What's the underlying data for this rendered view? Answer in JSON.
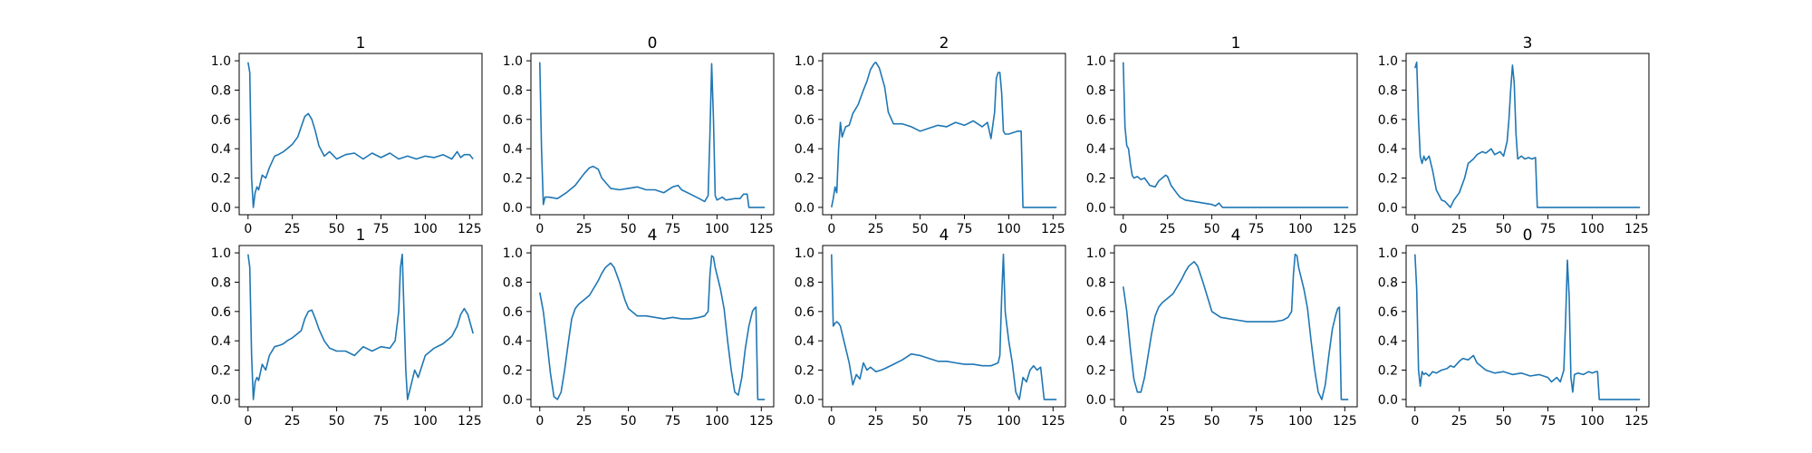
{
  "figure": {
    "line_color": "#1f77b4",
    "x_ticks": [
      0,
      25,
      50,
      75,
      100,
      125
    ],
    "y_ticks": [
      0.0,
      0.2,
      0.4,
      0.6,
      0.8,
      1.0
    ]
  },
  "chart_data": [
    {
      "type": "line",
      "title": "1",
      "xlabel": "",
      "ylabel": "",
      "xlim": [
        -5,
        132
      ],
      "ylim": [
        -0.05,
        1.05
      ],
      "grid": false,
      "series": [
        {
          "x": [
            0,
            1,
            2,
            3,
            4,
            5,
            6,
            8,
            10,
            12,
            15,
            17,
            20,
            22,
            25,
            28,
            30,
            32,
            34,
            36,
            38,
            40,
            43,
            46,
            50,
            55,
            60,
            65,
            70,
            75,
            80,
            85,
            90,
            95,
            100,
            105,
            110,
            115,
            118,
            120,
            122,
            125,
            127
          ],
          "y": [
            0.99,
            0.92,
            0.2,
            0.0,
            0.1,
            0.14,
            0.12,
            0.22,
            0.2,
            0.27,
            0.35,
            0.36,
            0.38,
            0.4,
            0.43,
            0.48,
            0.55,
            0.62,
            0.64,
            0.6,
            0.52,
            0.42,
            0.35,
            0.38,
            0.33,
            0.36,
            0.37,
            0.33,
            0.37,
            0.34,
            0.37,
            0.33,
            0.35,
            0.33,
            0.35,
            0.34,
            0.36,
            0.33,
            0.38,
            0.34,
            0.36,
            0.36,
            0.33
          ]
        }
      ]
    },
    {
      "type": "line",
      "title": "0",
      "xlabel": "",
      "ylabel": "",
      "xlim": [
        -5,
        132
      ],
      "ylim": [
        -0.05,
        1.05
      ],
      "grid": false,
      "series": [
        {
          "x": [
            0,
            1,
            2,
            3,
            5,
            10,
            15,
            20,
            25,
            28,
            30,
            33,
            35,
            40,
            45,
            50,
            55,
            60,
            65,
            70,
            75,
            78,
            80,
            85,
            90,
            93,
            95,
            96,
            97,
            98,
            99,
            100,
            103,
            105,
            110,
            113,
            115,
            117,
            118,
            120,
            125,
            127
          ],
          "y": [
            0.99,
            0.4,
            0.02,
            0.07,
            0.07,
            0.06,
            0.1,
            0.15,
            0.23,
            0.27,
            0.28,
            0.26,
            0.2,
            0.13,
            0.12,
            0.13,
            0.14,
            0.12,
            0.12,
            0.1,
            0.14,
            0.15,
            0.12,
            0.09,
            0.06,
            0.04,
            0.08,
            0.5,
            0.98,
            0.6,
            0.08,
            0.05,
            0.07,
            0.05,
            0.06,
            0.06,
            0.09,
            0.09,
            0.0,
            0.0,
            0.0,
            0.0
          ]
        }
      ]
    },
    {
      "type": "line",
      "title": "2",
      "xlabel": "",
      "ylabel": "",
      "xlim": [
        -5,
        132
      ],
      "ylim": [
        -0.05,
        1.05
      ],
      "grid": false,
      "series": [
        {
          "x": [
            0,
            1,
            2,
            3,
            4,
            5,
            6,
            8,
            10,
            12,
            15,
            18,
            20,
            22,
            24,
            25,
            27,
            30,
            32,
            35,
            40,
            45,
            50,
            55,
            60,
            65,
            70,
            75,
            80,
            85,
            88,
            90,
            92,
            93,
            94,
            95,
            96,
            97,
            98,
            100,
            105,
            107,
            108,
            110,
            115,
            120,
            125,
            127
          ],
          "y": [
            0.0,
            0.06,
            0.14,
            0.1,
            0.4,
            0.58,
            0.48,
            0.55,
            0.56,
            0.64,
            0.7,
            0.8,
            0.86,
            0.94,
            0.98,
            0.99,
            0.95,
            0.82,
            0.65,
            0.57,
            0.57,
            0.55,
            0.52,
            0.54,
            0.56,
            0.55,
            0.58,
            0.56,
            0.59,
            0.55,
            0.58,
            0.47,
            0.65,
            0.88,
            0.92,
            0.92,
            0.78,
            0.52,
            0.5,
            0.5,
            0.52,
            0.52,
            0.0,
            0.0,
            0.0,
            0.0,
            0.0,
            0.0
          ]
        }
      ]
    },
    {
      "type": "line",
      "title": "1",
      "xlabel": "",
      "ylabel": "",
      "xlim": [
        -5,
        132
      ],
      "ylim": [
        -0.05,
        1.05
      ],
      "grid": false,
      "series": [
        {
          "x": [
            0,
            1,
            2,
            3,
            4,
            5,
            6,
            8,
            10,
            12,
            15,
            18,
            20,
            22,
            24,
            25,
            27,
            30,
            32,
            35,
            40,
            45,
            50,
            52,
            54,
            56,
            60,
            70,
            80,
            90,
            100,
            110,
            120,
            127
          ],
          "y": [
            0.99,
            0.55,
            0.42,
            0.4,
            0.3,
            0.22,
            0.2,
            0.21,
            0.19,
            0.2,
            0.15,
            0.14,
            0.18,
            0.2,
            0.22,
            0.21,
            0.15,
            0.1,
            0.07,
            0.05,
            0.04,
            0.03,
            0.02,
            0.01,
            0.03,
            0.0,
            0.0,
            0.0,
            0.0,
            0.0,
            0.0,
            0.0,
            0.0,
            0.0
          ]
        }
      ]
    },
    {
      "type": "line",
      "title": "3",
      "xlabel": "",
      "ylabel": "",
      "xlim": [
        -5,
        132
      ],
      "ylim": [
        -0.05,
        1.05
      ],
      "grid": false,
      "series": [
        {
          "x": [
            0,
            1,
            2,
            3,
            4,
            5,
            6,
            8,
            10,
            12,
            15,
            17,
            20,
            22,
            25,
            28,
            30,
            33,
            35,
            38,
            40,
            43,
            45,
            48,
            50,
            52,
            53,
            54,
            55,
            56,
            57,
            58,
            60,
            62,
            64,
            66,
            68,
            69,
            70,
            80,
            90,
            100,
            110,
            120,
            127
          ],
          "y": [
            0.95,
            0.99,
            0.6,
            0.35,
            0.3,
            0.35,
            0.32,
            0.35,
            0.25,
            0.12,
            0.05,
            0.04,
            0.0,
            0.05,
            0.1,
            0.2,
            0.3,
            0.33,
            0.36,
            0.38,
            0.37,
            0.4,
            0.36,
            0.38,
            0.35,
            0.45,
            0.6,
            0.8,
            0.97,
            0.85,
            0.5,
            0.33,
            0.35,
            0.33,
            0.34,
            0.33,
            0.34,
            0.0,
            0.0,
            0.0,
            0.0,
            0.0,
            0.0,
            0.0,
            0.0
          ]
        }
      ]
    },
    {
      "type": "line",
      "title": "1",
      "xlabel": "",
      "ylabel": "",
      "xlim": [
        -5,
        132
      ],
      "ylim": [
        -0.05,
        1.05
      ],
      "grid": false,
      "series": [
        {
          "x": [
            0,
            1,
            2,
            3,
            4,
            5,
            6,
            8,
            10,
            12,
            15,
            18,
            20,
            22,
            25,
            28,
            30,
            32,
            34,
            36,
            38,
            40,
            43,
            46,
            50,
            55,
            60,
            65,
            70,
            75,
            80,
            83,
            85,
            86,
            87,
            88,
            89,
            90,
            92,
            94,
            96,
            100,
            105,
            110,
            115,
            118,
            120,
            122,
            124,
            127
          ],
          "y": [
            0.99,
            0.9,
            0.3,
            0.0,
            0.12,
            0.15,
            0.13,
            0.24,
            0.2,
            0.3,
            0.36,
            0.37,
            0.38,
            0.4,
            0.42,
            0.45,
            0.47,
            0.55,
            0.6,
            0.61,
            0.55,
            0.48,
            0.4,
            0.35,
            0.33,
            0.33,
            0.3,
            0.36,
            0.33,
            0.36,
            0.35,
            0.4,
            0.6,
            0.9,
            0.99,
            0.6,
            0.2,
            0.0,
            0.1,
            0.2,
            0.15,
            0.3,
            0.35,
            0.38,
            0.43,
            0.5,
            0.58,
            0.62,
            0.58,
            0.45
          ]
        }
      ]
    },
    {
      "type": "line",
      "title": "4",
      "xlabel": "",
      "ylabel": "",
      "xlim": [
        -5,
        132
      ],
      "ylim": [
        -0.05,
        1.05
      ],
      "grid": false,
      "series": [
        {
          "x": [
            0,
            2,
            4,
            6,
            8,
            10,
            12,
            14,
            16,
            18,
            20,
            22,
            25,
            28,
            30,
            33,
            35,
            37,
            40,
            42,
            45,
            48,
            50,
            55,
            60,
            65,
            70,
            75,
            80,
            85,
            90,
            93,
            95,
            96,
            97,
            98,
            99,
            100,
            102,
            104,
            106,
            108,
            110,
            112,
            114,
            116,
            118,
            120,
            121,
            122,
            123,
            125,
            127
          ],
          "y": [
            0.73,
            0.6,
            0.4,
            0.18,
            0.02,
            0.0,
            0.05,
            0.2,
            0.38,
            0.55,
            0.62,
            0.65,
            0.68,
            0.71,
            0.75,
            0.81,
            0.86,
            0.9,
            0.93,
            0.9,
            0.8,
            0.68,
            0.62,
            0.57,
            0.57,
            0.56,
            0.55,
            0.56,
            0.55,
            0.55,
            0.56,
            0.57,
            0.6,
            0.85,
            0.98,
            0.97,
            0.9,
            0.85,
            0.75,
            0.62,
            0.4,
            0.2,
            0.05,
            0.03,
            0.15,
            0.35,
            0.5,
            0.6,
            0.62,
            0.63,
            0.0,
            0.0,
            0.0
          ]
        }
      ]
    },
    {
      "type": "line",
      "title": "4",
      "xlabel": "",
      "ylabel": "",
      "xlim": [
        -5,
        132
      ],
      "ylim": [
        -0.05,
        1.05
      ],
      "grid": false,
      "series": [
        {
          "x": [
            0,
            1,
            2,
            3,
            4,
            5,
            6,
            8,
            10,
            12,
            14,
            16,
            18,
            20,
            22,
            25,
            28,
            30,
            35,
            40,
            45,
            50,
            55,
            60,
            65,
            70,
            75,
            80,
            85,
            90,
            92,
            94,
            95,
            96,
            97,
            98,
            99,
            100,
            102,
            104,
            106,
            108,
            110,
            112,
            114,
            116,
            118,
            120,
            125,
            127
          ],
          "y": [
            0.99,
            0.5,
            0.52,
            0.53,
            0.52,
            0.5,
            0.45,
            0.35,
            0.25,
            0.1,
            0.17,
            0.14,
            0.25,
            0.2,
            0.22,
            0.19,
            0.2,
            0.21,
            0.24,
            0.27,
            0.31,
            0.3,
            0.28,
            0.26,
            0.26,
            0.25,
            0.24,
            0.24,
            0.23,
            0.23,
            0.24,
            0.25,
            0.3,
            0.7,
            0.99,
            0.6,
            0.5,
            0.4,
            0.25,
            0.05,
            0.0,
            0.15,
            0.12,
            0.2,
            0.23,
            0.2,
            0.22,
            0.0,
            0.0,
            0.0
          ]
        }
      ]
    },
    {
      "type": "line",
      "title": "4",
      "xlabel": "",
      "ylabel": "",
      "xlim": [
        -5,
        132
      ],
      "ylim": [
        -0.05,
        1.05
      ],
      "grid": false,
      "series": [
        {
          "x": [
            0,
            2,
            4,
            6,
            8,
            10,
            12,
            14,
            16,
            18,
            20,
            22,
            25,
            28,
            30,
            33,
            35,
            37,
            40,
            42,
            45,
            48,
            50,
            55,
            60,
            65,
            70,
            75,
            80,
            85,
            90,
            93,
            95,
            96,
            97,
            98,
            99,
            100,
            102,
            104,
            106,
            108,
            110,
            112,
            114,
            116,
            118,
            120,
            121,
            122,
            123,
            125,
            127
          ],
          "y": [
            0.77,
            0.6,
            0.35,
            0.14,
            0.05,
            0.05,
            0.15,
            0.3,
            0.45,
            0.57,
            0.63,
            0.66,
            0.69,
            0.72,
            0.76,
            0.82,
            0.87,
            0.91,
            0.94,
            0.91,
            0.8,
            0.68,
            0.6,
            0.56,
            0.55,
            0.54,
            0.53,
            0.53,
            0.53,
            0.53,
            0.54,
            0.56,
            0.6,
            0.85,
            0.99,
            0.98,
            0.9,
            0.85,
            0.75,
            0.62,
            0.4,
            0.2,
            0.05,
            0.0,
            0.1,
            0.3,
            0.48,
            0.58,
            0.62,
            0.63,
            0.0,
            0.0,
            0.0
          ]
        }
      ]
    },
    {
      "type": "line",
      "title": "0",
      "xlabel": "",
      "ylabel": "",
      "xlim": [
        -5,
        132
      ],
      "ylim": [
        -0.05,
        1.05
      ],
      "grid": false,
      "series": [
        {
          "x": [
            0,
            1,
            2,
            3,
            4,
            5,
            6,
            8,
            10,
            12,
            15,
            18,
            20,
            22,
            25,
            27,
            30,
            33,
            35,
            40,
            45,
            50,
            55,
            60,
            65,
            70,
            75,
            77,
            80,
            82,
            84,
            85,
            86,
            87,
            88,
            89,
            90,
            92,
            95,
            98,
            100,
            102,
            103,
            104,
            110,
            120,
            127
          ],
          "y": [
            0.99,
            0.75,
            0.2,
            0.09,
            0.19,
            0.17,
            0.18,
            0.16,
            0.19,
            0.18,
            0.2,
            0.21,
            0.23,
            0.22,
            0.26,
            0.28,
            0.27,
            0.3,
            0.25,
            0.2,
            0.18,
            0.19,
            0.17,
            0.18,
            0.16,
            0.17,
            0.15,
            0.12,
            0.15,
            0.12,
            0.2,
            0.55,
            0.95,
            0.7,
            0.15,
            0.05,
            0.17,
            0.18,
            0.17,
            0.19,
            0.18,
            0.19,
            0.19,
            0.0,
            0.0,
            0.0,
            0.0
          ]
        }
      ]
    }
  ]
}
